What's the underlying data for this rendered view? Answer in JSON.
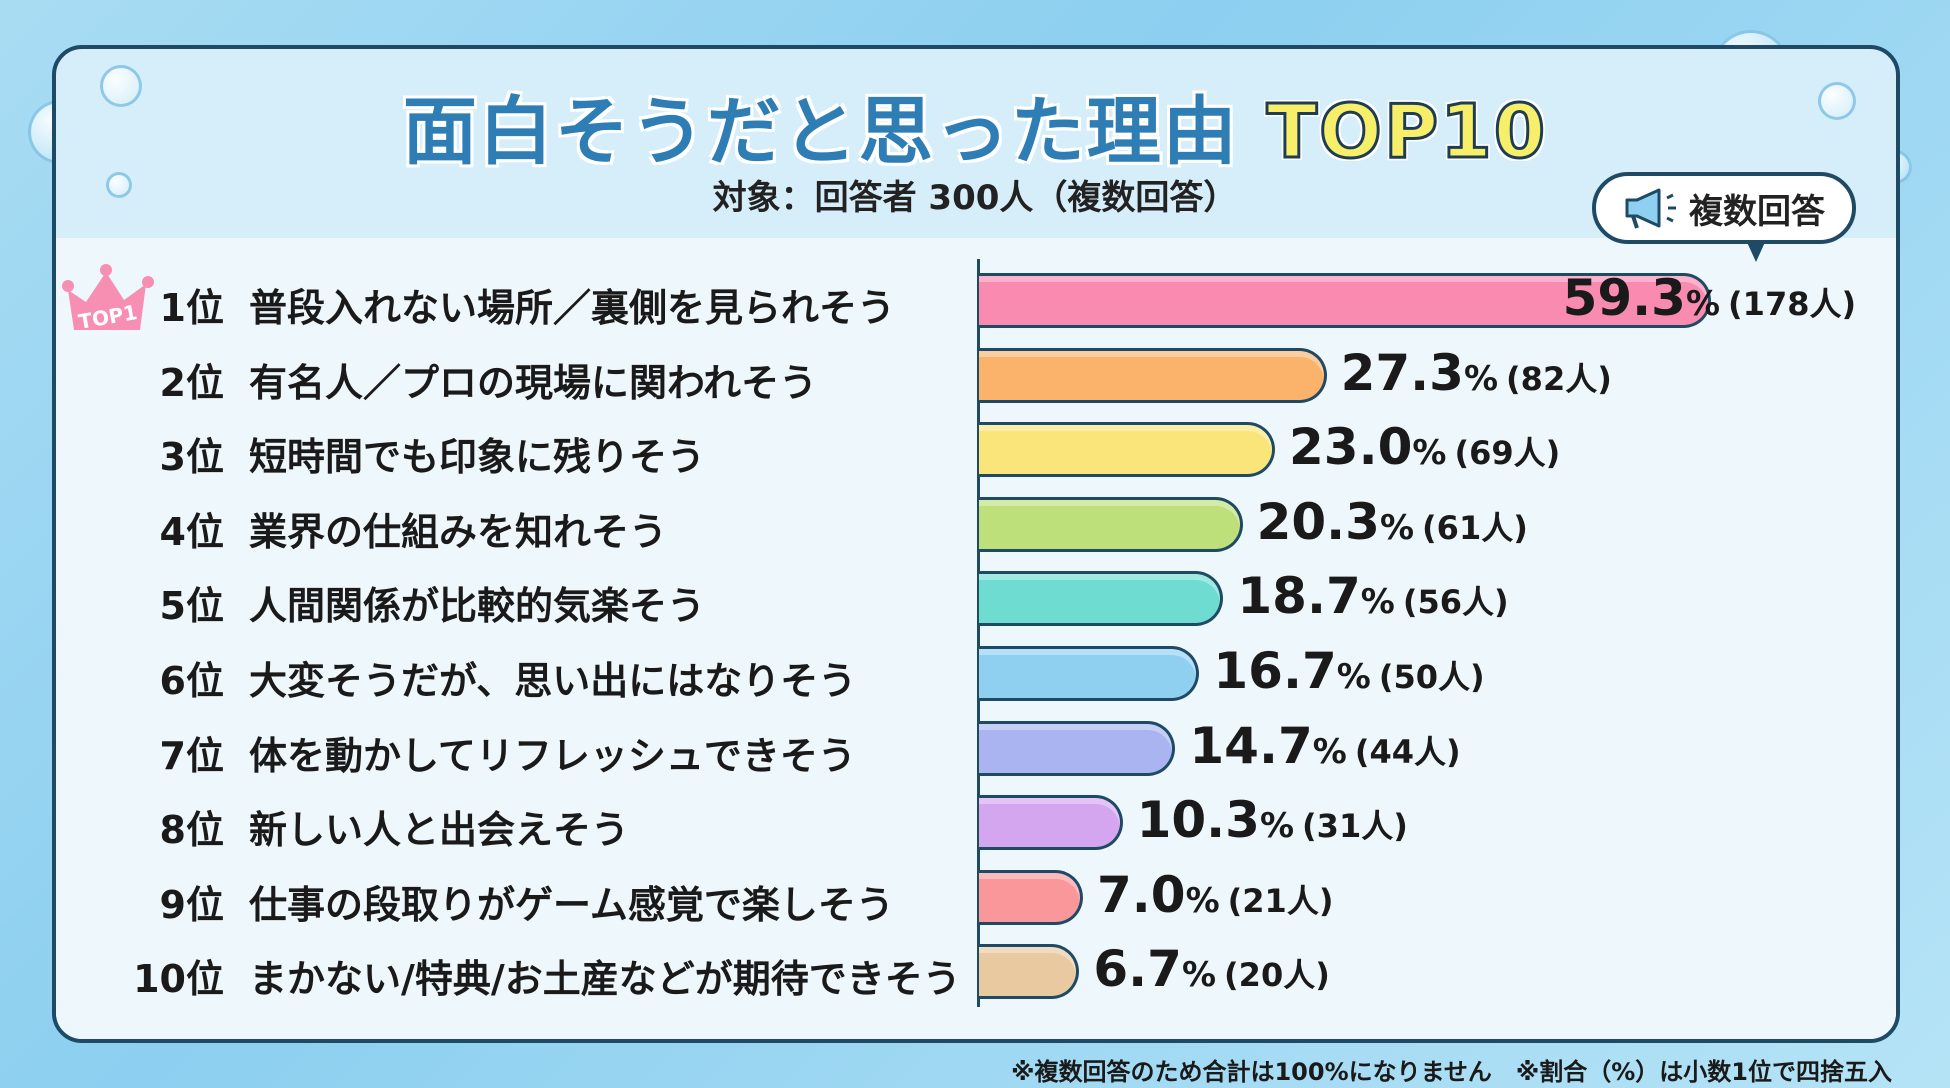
{
  "header": {
    "title_main": "面白そうだと思った理由",
    "title_highlight": "TOP10",
    "subtitle": "対象：回答者 300人（複数回答）",
    "badge": "複数回答",
    "crown_label": "TOP1"
  },
  "footnote": "※複数回答のため合計は100%になりません　※割合（%）は小数1位で四捨五入",
  "chart_data": {
    "type": "bar",
    "orientation": "horizontal",
    "title": "面白そうだと思った理由 TOP10",
    "categories": [
      "普段入れない場所／裏側を見られそう",
      "有名人／プロの現場に関われそう",
      "短時間でも印象に残りそう",
      "業界の仕組みを知れそう",
      "人間関係が比較的気楽そう",
      "大変そうだが、思い出にはなりそう",
      "体を動かしてリフレッシュできそう",
      "新しい人と出会えそう",
      "仕事の段取りがゲーム感覚で楽しそう",
      "まかない/特典/お土産などが期待できそう"
    ],
    "ranks": [
      "1位",
      "2位",
      "3位",
      "4位",
      "5位",
      "6位",
      "7位",
      "8位",
      "9位",
      "10位"
    ],
    "values": [
      59.3,
      27.3,
      23.0,
      20.3,
      18.7,
      16.7,
      14.7,
      10.3,
      7.0,
      6.7
    ],
    "value_labels": [
      "59.3",
      "27.3",
      "23.0",
      "20.3",
      "18.7",
      "16.7",
      "14.7",
      "10.3",
      "7.0",
      "6.7"
    ],
    "unit": "%",
    "counts": [
      "(178人)",
      "(82人)",
      "(69人)",
      "(61人)",
      "(56人)",
      "(50人)",
      "(44人)",
      "(31人)",
      "(21人)",
      "(20人)"
    ],
    "colors": [
      "#f98bb0",
      "#fbb36c",
      "#f9e57a",
      "#bde07a",
      "#6fdcd2",
      "#8fcff0",
      "#aab4f0",
      "#d4a6f0",
      "#f9979a",
      "#e8c9a0"
    ],
    "grid": false
  }
}
